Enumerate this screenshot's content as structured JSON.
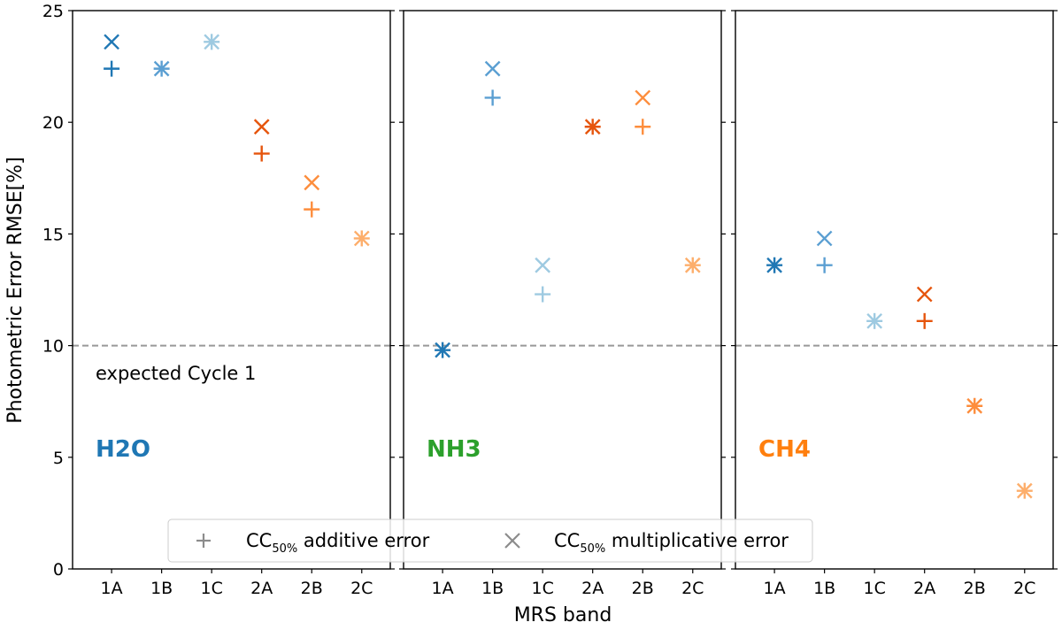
{
  "chart_data": {
    "type": "scatter",
    "xlabel": "MRS band",
    "ylabel": "Photometric Error RMSE[%]",
    "ylim": [
      0,
      25
    ],
    "yticks": [
      0,
      5,
      10,
      15,
      20,
      25
    ],
    "categories": [
      "1A",
      "1B",
      "1C",
      "2A",
      "2B",
      "2C"
    ],
    "colors": {
      "1A": "#1f77b4",
      "1B": "#5b9fd2",
      "1C": "#9ecae1",
      "2A": "#e6550d",
      "2B": "#fd8d3c",
      "2C": "#fdae6b"
    },
    "reference_line": {
      "y": 10,
      "label": "expected Cycle 1"
    },
    "panels": [
      {
        "label": "H2O",
        "label_color": "#1f77b4",
        "additive": [
          22.4,
          22.4,
          23.6,
          18.6,
          16.1,
          14.8
        ],
        "multiplicative": [
          23.6,
          22.4,
          23.6,
          19.8,
          17.3,
          14.8
        ]
      },
      {
        "label": "NH3",
        "label_color": "#2ca02c",
        "additive": [
          9.8,
          21.1,
          12.3,
          19.8,
          19.8,
          13.6
        ],
        "multiplicative": [
          9.8,
          22.4,
          13.6,
          19.8,
          21.1,
          13.6
        ]
      },
      {
        "label": "CH4",
        "label_color": "#ff7f0e",
        "additive": [
          13.6,
          13.6,
          11.1,
          11.1,
          7.3,
          3.5
        ],
        "multiplicative": [
          13.6,
          14.8,
          11.1,
          12.3,
          7.3,
          3.5
        ]
      }
    ],
    "legend": {
      "location": "lower center",
      "entries": [
        {
          "marker": "plus",
          "prefix": "CC",
          "subscript": "50%",
          "suffix": " additive error"
        },
        {
          "marker": "x",
          "prefix": "CC",
          "subscript": "50%",
          "suffix": " multiplicative error"
        }
      ]
    }
  }
}
